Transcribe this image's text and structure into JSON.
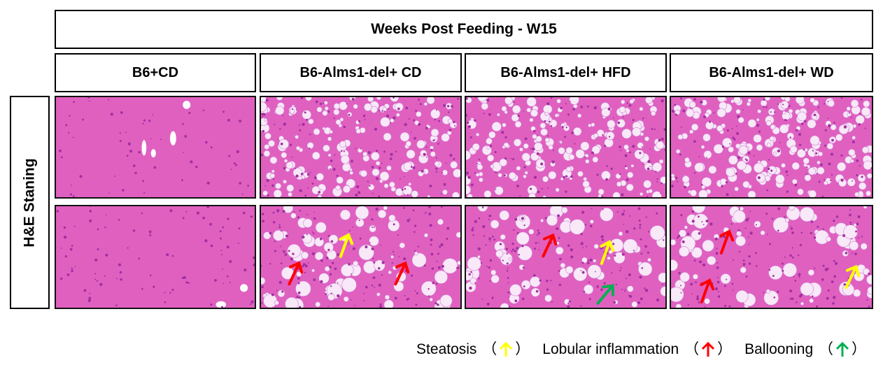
{
  "title": "Weeks Post Feeding - W15",
  "columns": [
    {
      "label": "B6+CD"
    },
    {
      "label": "B6-Alms1-del+ CD"
    },
    {
      "label": "B6-Alms1-del+ HFD"
    },
    {
      "label": "B6-Alms1-del+ WD"
    }
  ],
  "row_label": "H&E Staning",
  "legend": [
    {
      "label": "Steatosis",
      "color": "#ffff00"
    },
    {
      "label": "Lobular inflammation",
      "color": "#ff0000"
    },
    {
      "label": "Ballooning",
      "color": "#00b050"
    }
  ],
  "tissue_colors": {
    "background": "#e060c0",
    "dark": "#a030a0",
    "vacuole": "#f8e8f8"
  },
  "paren_open": "（",
  "paren_close": "）"
}
